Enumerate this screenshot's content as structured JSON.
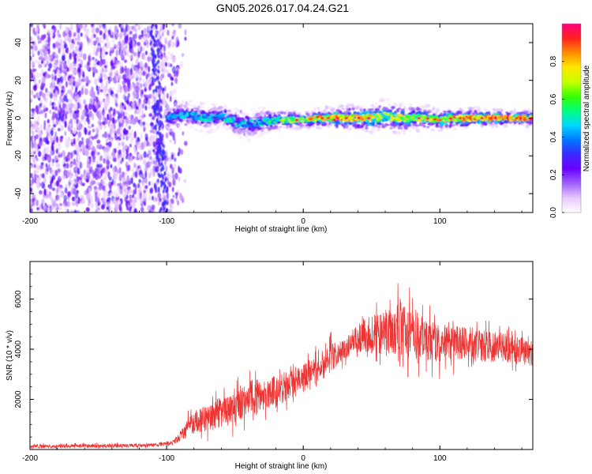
{
  "title": "GN05.2026.017.04.24.G21",
  "chart_data": [
    {
      "type": "heatmap",
      "title": "GN05.2026.017.04.24.G21",
      "xlabel": "Height of straight line (km)",
      "ylabel": "Frequency (Hz)",
      "xlim": [
        -200,
        168
      ],
      "ylim": [
        -50,
        50
      ],
      "xticks": [
        "-200",
        "-100",
        "0",
        "100"
      ],
      "yticks": [
        "40",
        "20",
        "0",
        "-20",
        "-40"
      ],
      "colorbar": {
        "label": "Normalized spectral amplitude",
        "range": [
          0.0,
          1.0
        ],
        "ticks": [
          "0.0",
          "0.2",
          "0.4",
          "0.6",
          "0.8"
        ],
        "colors": [
          "#ffffff",
          "#e8c8ff",
          "#a060ff",
          "#6a00ff",
          "#3c28ff",
          "#0078ff",
          "#00d8ff",
          "#00ff80",
          "#38ff00",
          "#c8ff00",
          "#ffe600",
          "#ff8c00",
          "#ff2020",
          "#ff0080"
        ]
      },
      "noise_region_km": [
        -200,
        -90
      ],
      "signal_band": {
        "x_start_km": -100,
        "x_end_km": 168,
        "center_freq_hz": [
          [
            -100,
            0
          ],
          [
            -90,
            2
          ],
          [
            -80,
            1
          ],
          [
            -70,
            0
          ],
          [
            -60,
            1
          ],
          [
            -50,
            -2
          ],
          [
            -40,
            -3
          ],
          [
            -30,
            -2
          ],
          [
            -20,
            -1
          ],
          [
            -10,
            -1
          ],
          [
            0,
            -1
          ],
          [
            10,
            0
          ],
          [
            20,
            0
          ],
          [
            30,
            0
          ],
          [
            40,
            0
          ],
          [
            50,
            0
          ],
          [
            60,
            1
          ],
          [
            70,
            0
          ],
          [
            80,
            0
          ],
          [
            90,
            0
          ],
          [
            100,
            -1
          ],
          [
            110,
            0
          ],
          [
            120,
            0
          ],
          [
            130,
            0
          ],
          [
            140,
            0
          ],
          [
            150,
            0
          ],
          [
            160,
            0
          ],
          [
            168,
            0
          ]
        ],
        "half_width_hz": [
          [
            -100,
            5
          ],
          [
            -80,
            5
          ],
          [
            -60,
            5
          ],
          [
            -40,
            6
          ],
          [
            -20,
            4
          ],
          [
            0,
            3
          ],
          [
            20,
            4
          ],
          [
            40,
            5
          ],
          [
            60,
            6
          ],
          [
            80,
            5
          ],
          [
            100,
            4
          ],
          [
            120,
            4
          ],
          [
            140,
            3
          ],
          [
            160,
            3
          ],
          [
            168,
            3
          ]
        ],
        "peak_amplitude": [
          [
            -100,
            0.45
          ],
          [
            -80,
            0.5
          ],
          [
            -60,
            0.5
          ],
          [
            -40,
            0.45
          ],
          [
            -20,
            0.6
          ],
          [
            0,
            0.8
          ],
          [
            20,
            0.9
          ],
          [
            40,
            0.85
          ],
          [
            60,
            0.7
          ],
          [
            80,
            0.75
          ],
          [
            100,
            0.8
          ],
          [
            120,
            0.9
          ],
          [
            140,
            0.95
          ],
          [
            160,
            0.9
          ],
          [
            168,
            0.85
          ]
        ]
      }
    },
    {
      "type": "line",
      "xlabel": "Height of straight line (km)",
      "ylabel": "SNR (10 * v/v)",
      "xlim": [
        -200,
        168
      ],
      "ylim": [
        0,
        7500
      ],
      "xticks": [
        "-200",
        "-100",
        "0",
        "100"
      ],
      "yticks": [
        "6000",
        "4000",
        "2000"
      ],
      "series": [
        {
          "name": "SNR",
          "color": "#ee3333",
          "envelope_x": [
            -200,
            -150,
            -110,
            -95,
            -80,
            -70,
            -60,
            -50,
            -40,
            -30,
            -20,
            -10,
            0,
            10,
            20,
            30,
            40,
            50,
            60,
            70,
            80,
            90,
            100,
            110,
            120,
            130,
            140,
            150,
            160,
            168
          ],
          "envelope_low": [
            0,
            0,
            50,
            100,
            200,
            300,
            400,
            500,
            800,
            900,
            1100,
            1500,
            1800,
            2100,
            2600,
            3300,
            3400,
            3200,
            3000,
            2900,
            2800,
            2800,
            2800,
            2900,
            2900,
            3000,
            3000,
            3000,
            2900,
            2900
          ],
          "envelope_high": [
            250,
            280,
            300,
            450,
            2000,
            2300,
            2600,
            2800,
            3300,
            3400,
            3500,
            3700,
            3900,
            4300,
            4700,
            4700,
            5500,
            6000,
            6200,
            6800,
            6400,
            5900,
            5600,
            5800,
            5500,
            5300,
            5200,
            5100,
            4900,
            4800
          ]
        }
      ]
    }
  ]
}
